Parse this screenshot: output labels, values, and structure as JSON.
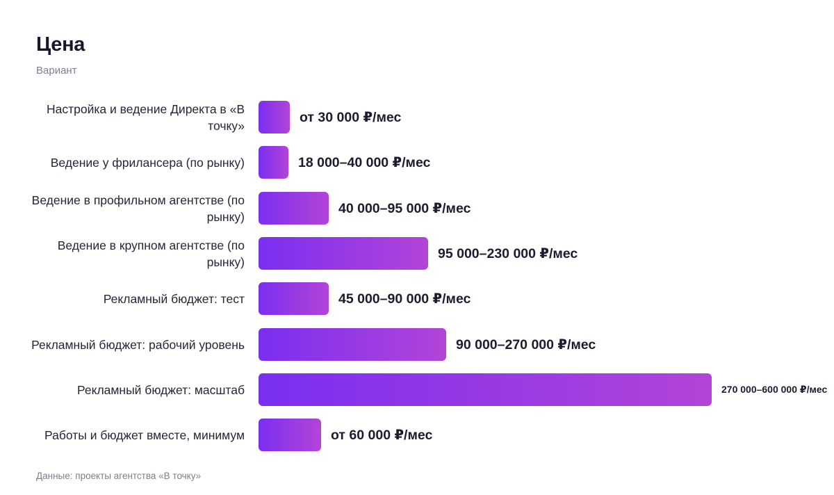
{
  "chart_data": {
    "type": "bar",
    "orientation": "horizontal",
    "title": "Цена",
    "subtitle": "Вариант",
    "source": "Данные: проекты агентства «В точку»",
    "categories": [
      "Настройка и ведение Директа в «В точку»",
      "Ведение у фрилансера (по рынку)",
      "Ведение в профильном агентстве (по рынку)",
      "Ведение в крупном агентстве (по рынку)",
      "Рекламный бюджет: тест",
      "Рекламный бюджет: рабочий уровень",
      "Рекламный бюджет: масштаб",
      "Работы и бюджет вместе, минимум"
    ],
    "values": [
      30000,
      29000,
      67500,
      162500,
      67500,
      180000,
      435000,
      60000
    ],
    "value_labels": [
      "от 30 000 ₽/мес",
      "18 000–40 000 ₽/мес",
      "40 000–95 000 ₽/мес",
      "95 000–230 000 ₽/мес",
      "45 000–90 000 ₽/мес",
      "90 000–270 000 ₽/мес",
      "270 000–600 000 ₽/мес",
      "от 60 000 ₽/мес"
    ],
    "grid": false,
    "legend": "none",
    "colors": {
      "bar_start": "#7a2ff0",
      "bar_end": "#b344d8",
      "text": "#1c1c30",
      "muted": "#7a7f8c"
    }
  }
}
